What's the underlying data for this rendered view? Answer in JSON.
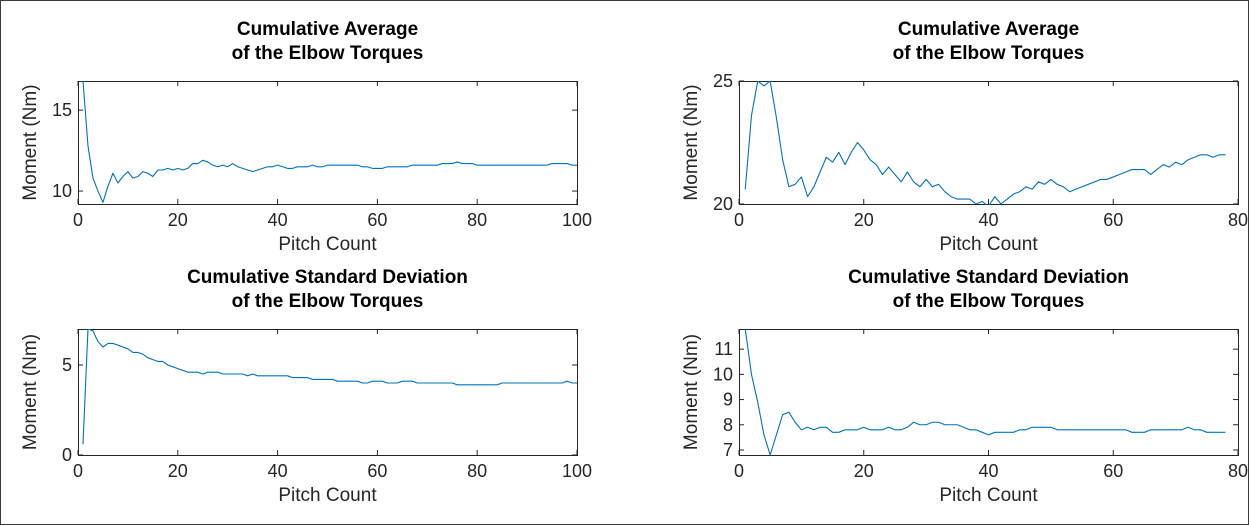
{
  "colors": {
    "series": "#0072BD",
    "axis": "#262626"
  },
  "chart_data": [
    {
      "type": "line",
      "title": "Cumulative Average\nof the Elbow Torques",
      "xlabel": "Pitch Count",
      "ylabel": "Moment (Nm)",
      "xlim": [
        0,
        100
      ],
      "ylim": [
        9.2,
        16.8
      ],
      "xticks": [
        0,
        20,
        40,
        60,
        80,
        100
      ],
      "yticks": [
        10,
        15
      ],
      "grid": false,
      "series": [
        {
          "x": [
            1,
            2,
            3,
            4,
            5,
            6,
            7,
            8,
            9,
            10,
            11,
            12,
            13,
            14,
            15,
            16,
            17,
            18,
            19,
            20,
            21,
            22,
            23,
            24,
            25,
            26,
            27,
            28,
            29,
            30,
            31,
            32,
            33,
            34,
            35,
            36,
            37,
            38,
            39,
            40,
            41,
            42,
            43,
            44,
            45,
            46,
            47,
            48,
            49,
            50,
            51,
            52,
            53,
            54,
            55,
            56,
            57,
            58,
            59,
            60,
            61,
            62,
            63,
            64,
            65,
            66,
            67,
            68,
            69,
            70,
            71,
            72,
            73,
            74,
            75,
            76,
            77,
            78,
            79,
            80,
            81,
            82,
            83,
            84,
            85,
            86,
            87,
            88,
            89,
            90,
            91,
            92,
            93,
            94,
            95,
            96,
            97,
            98,
            99,
            100
          ],
          "y": [
            16.8,
            12.8,
            10.8,
            10.0,
            9.3,
            10.3,
            11.1,
            10.5,
            10.9,
            11.2,
            10.8,
            10.9,
            11.2,
            11.1,
            10.9,
            11.3,
            11.3,
            11.4,
            11.3,
            11.4,
            11.3,
            11.4,
            11.7,
            11.7,
            11.9,
            11.8,
            11.6,
            11.5,
            11.6,
            11.5,
            11.7,
            11.5,
            11.4,
            11.3,
            11.2,
            11.3,
            11.4,
            11.5,
            11.5,
            11.6,
            11.5,
            11.4,
            11.4,
            11.5,
            11.5,
            11.5,
            11.6,
            11.5,
            11.5,
            11.6,
            11.6,
            11.6,
            11.6,
            11.6,
            11.6,
            11.6,
            11.5,
            11.5,
            11.4,
            11.4,
            11.4,
            11.5,
            11.5,
            11.5,
            11.5,
            11.5,
            11.6,
            11.6,
            11.6,
            11.6,
            11.6,
            11.6,
            11.7,
            11.7,
            11.7,
            11.8,
            11.7,
            11.7,
            11.7,
            11.6,
            11.6,
            11.6,
            11.6,
            11.6,
            11.6,
            11.6,
            11.6,
            11.6,
            11.6,
            11.6,
            11.6,
            11.6,
            11.6,
            11.6,
            11.7,
            11.7,
            11.7,
            11.7,
            11.6,
            11.6
          ]
        }
      ]
    },
    {
      "type": "line",
      "title": "Cumulative Average\nof the Elbow Torques",
      "xlabel": "Pitch Count",
      "ylabel": "Moment (Nm)",
      "xlim": [
        0,
        80
      ],
      "ylim": [
        20,
        25
      ],
      "xticks": [
        0,
        20,
        40,
        60,
        80
      ],
      "yticks": [
        20,
        25
      ],
      "grid": false,
      "series": [
        {
          "x": [
            1,
            2,
            3,
            4,
            5,
            6,
            7,
            8,
            9,
            10,
            11,
            12,
            13,
            14,
            15,
            16,
            17,
            18,
            19,
            20,
            21,
            22,
            23,
            24,
            25,
            26,
            27,
            28,
            29,
            30,
            31,
            32,
            33,
            34,
            35,
            36,
            37,
            38,
            39,
            40,
            41,
            42,
            43,
            44,
            45,
            46,
            47,
            48,
            49,
            50,
            51,
            52,
            53,
            54,
            55,
            56,
            57,
            58,
            59,
            60,
            61,
            62,
            63,
            64,
            65,
            66,
            67,
            68,
            69,
            70,
            71,
            72,
            73,
            74,
            75,
            76,
            77,
            78
          ],
          "y": [
            20.6,
            23.6,
            25.0,
            24.8,
            25.0,
            23.5,
            21.8,
            20.7,
            20.8,
            21.1,
            20.3,
            20.7,
            21.3,
            21.9,
            21.7,
            22.1,
            21.6,
            22.1,
            22.5,
            22.2,
            21.8,
            21.6,
            21.2,
            21.5,
            21.2,
            20.9,
            21.3,
            20.9,
            20.7,
            21.0,
            20.7,
            20.8,
            20.5,
            20.3,
            20.2,
            20.2,
            20.2,
            20.0,
            20.1,
            19.9,
            20.3,
            20.0,
            20.2,
            20.4,
            20.5,
            20.7,
            20.6,
            20.9,
            20.8,
            21.0,
            20.8,
            20.7,
            20.5,
            20.6,
            20.7,
            20.8,
            20.9,
            21.0,
            21.0,
            21.1,
            21.2,
            21.3,
            21.4,
            21.4,
            21.4,
            21.2,
            21.4,
            21.6,
            21.5,
            21.7,
            21.6,
            21.8,
            21.9,
            22.0,
            22.0,
            21.9,
            22.0,
            22.0
          ]
        }
      ]
    },
    {
      "type": "line",
      "title": "Cumulative Standard Deviation\nof the Elbow Torques",
      "xlabel": "Pitch Count",
      "ylabel": "Moment (Nm)",
      "xlim": [
        0,
        100
      ],
      "ylim": [
        0,
        7
      ],
      "xticks": [
        0,
        20,
        40,
        60,
        80,
        100
      ],
      "yticks": [
        0,
        5
      ],
      "grid": false,
      "series": [
        {
          "x": [
            1,
            2,
            3,
            4,
            5,
            6,
            7,
            8,
            9,
            10,
            11,
            12,
            13,
            14,
            15,
            16,
            17,
            18,
            19,
            20,
            21,
            22,
            23,
            24,
            25,
            26,
            27,
            28,
            29,
            30,
            31,
            32,
            33,
            34,
            35,
            36,
            37,
            38,
            39,
            40,
            41,
            42,
            43,
            44,
            45,
            46,
            47,
            48,
            49,
            50,
            51,
            52,
            53,
            54,
            55,
            56,
            57,
            58,
            59,
            60,
            61,
            62,
            63,
            64,
            65,
            66,
            67,
            68,
            69,
            70,
            71,
            72,
            73,
            74,
            75,
            76,
            77,
            78,
            79,
            80,
            81,
            82,
            83,
            84,
            85,
            86,
            87,
            88,
            89,
            90,
            91,
            92,
            93,
            94,
            95,
            96,
            97,
            98,
            99,
            100
          ],
          "y": [
            0.6,
            7.0,
            6.9,
            6.3,
            6.0,
            6.2,
            6.2,
            6.1,
            6.0,
            5.9,
            5.7,
            5.7,
            5.6,
            5.4,
            5.3,
            5.2,
            5.2,
            5.0,
            4.9,
            4.8,
            4.7,
            4.6,
            4.6,
            4.6,
            4.5,
            4.6,
            4.6,
            4.6,
            4.5,
            4.5,
            4.5,
            4.5,
            4.5,
            4.4,
            4.5,
            4.4,
            4.4,
            4.4,
            4.4,
            4.4,
            4.4,
            4.4,
            4.3,
            4.3,
            4.3,
            4.3,
            4.2,
            4.2,
            4.2,
            4.2,
            4.2,
            4.1,
            4.1,
            4.1,
            4.1,
            4.1,
            4.0,
            4.0,
            4.1,
            4.1,
            4.1,
            4.0,
            4.0,
            4.0,
            4.1,
            4.1,
            4.1,
            4.0,
            4.0,
            4.0,
            4.0,
            4.0,
            4.0,
            4.0,
            4.0,
            3.9,
            3.9,
            3.9,
            3.9,
            3.9,
            3.9,
            3.9,
            3.9,
            3.9,
            4.0,
            4.0,
            4.0,
            4.0,
            4.0,
            4.0,
            4.0,
            4.0,
            4.0,
            4.0,
            4.0,
            4.0,
            4.0,
            4.1,
            4.0,
            4.0
          ]
        }
      ]
    },
    {
      "type": "line",
      "title": "Cumulative Standard Deviation\nof the Elbow Torques",
      "xlabel": "Pitch Count",
      "ylabel": "Moment (Nm)",
      "xlim": [
        0,
        80
      ],
      "ylim": [
        6.8,
        11.8
      ],
      "xticks": [
        0,
        20,
        40,
        60,
        80
      ],
      "yticks": [
        7,
        8,
        9,
        10,
        11
      ],
      "grid": false,
      "series": [
        {
          "x": [
            1,
            2,
            3,
            4,
            5,
            6,
            7,
            8,
            9,
            10,
            11,
            12,
            13,
            14,
            15,
            16,
            17,
            18,
            19,
            20,
            21,
            22,
            23,
            24,
            25,
            26,
            27,
            28,
            29,
            30,
            31,
            32,
            33,
            34,
            35,
            36,
            37,
            38,
            39,
            40,
            41,
            42,
            43,
            44,
            45,
            46,
            47,
            48,
            49,
            50,
            51,
            52,
            53,
            54,
            55,
            56,
            57,
            58,
            59,
            60,
            61,
            62,
            63,
            64,
            65,
            66,
            67,
            68,
            69,
            70,
            71,
            72,
            73,
            74,
            75,
            76,
            77,
            78
          ],
          "y": [
            11.8,
            10.0,
            8.9,
            7.6,
            6.8,
            7.6,
            8.4,
            8.5,
            8.1,
            7.8,
            7.9,
            7.8,
            7.9,
            7.9,
            7.7,
            7.7,
            7.8,
            7.8,
            7.8,
            7.9,
            7.8,
            7.8,
            7.8,
            7.9,
            7.8,
            7.8,
            7.9,
            8.1,
            8.0,
            8.0,
            8.1,
            8.1,
            8.0,
            8.0,
            8.0,
            7.9,
            7.8,
            7.8,
            7.7,
            7.6,
            7.7,
            7.7,
            7.7,
            7.7,
            7.8,
            7.8,
            7.9,
            7.9,
            7.9,
            7.9,
            7.8,
            7.8,
            7.8,
            7.8,
            7.8,
            7.8,
            7.8,
            7.8,
            7.8,
            7.8,
            7.8,
            7.8,
            7.7,
            7.7,
            7.7,
            7.8,
            7.8,
            7.8,
            7.8,
            7.8,
            7.8,
            7.9,
            7.8,
            7.8,
            7.7,
            7.7,
            7.7,
            7.7
          ]
        }
      ]
    }
  ]
}
